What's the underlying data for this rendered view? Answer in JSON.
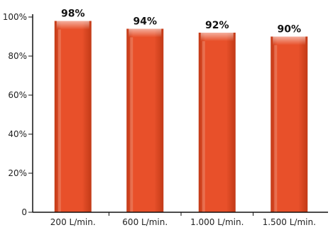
{
  "chart_data": {
    "type": "bar",
    "categories": [
      "200 L/min.",
      "600 L/min.",
      "1.000 L/min.",
      "1.500 L/min."
    ],
    "values": [
      98,
      94,
      92,
      90
    ],
    "data_labels": [
      "98%",
      "94%",
      "92%",
      "90%"
    ],
    "title": "",
    "xlabel": "",
    "ylabel": "",
    "ylim": [
      0,
      100
    ],
    "yticks": [
      0,
      20,
      40,
      60,
      80,
      100
    ],
    "ytick_labels": [
      "0",
      "20%",
      "40%",
      "60%",
      "80%",
      "100%"
    ],
    "grid": false,
    "legend": "none",
    "bar_color": "#e8502a",
    "bar_highlight_color": "#f7b49e",
    "bar_shadow_color": "#c23a17"
  }
}
